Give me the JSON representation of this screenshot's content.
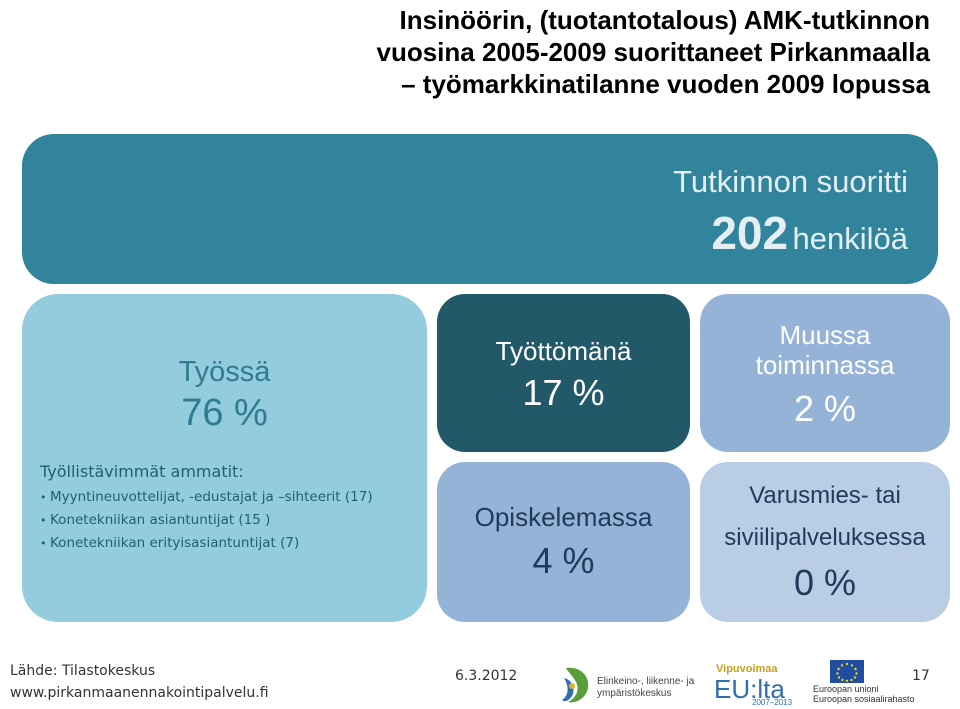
{
  "title": {
    "line1": "Insinöörin, (tuotantotalous) AMK-tutkinnon",
    "line2": "vuosina 2005-2009 suorittaneet Pirkanmaalla",
    "line3": "– työmarkkinatilanne vuoden 2009 lopussa"
  },
  "total": {
    "label": "Tutkinnon suoritti",
    "count": "202",
    "unit": "henkilöä"
  },
  "employed": {
    "label": "Työssä",
    "percent": "76 %",
    "occupations_title": "Työllistävimmät ammatit:",
    "occupations": [
      "Myyntineuvottelijat, -edustajat ja –sihteerit (17)",
      "Konetekniikan asiantuntijat  (15 )",
      "Konetekniikan erityisasiantuntijat  (7)"
    ]
  },
  "unemployed": {
    "label": "Työttömänä",
    "percent": "17 %"
  },
  "studying": {
    "label": "Opiskelemassa",
    "percent": "4 %"
  },
  "other": {
    "label": "Muussa toiminnassa",
    "percent": "2 %"
  },
  "military": {
    "label_line1": "Varusmies- tai",
    "label_line2": "siviilipalveluksessa",
    "percent": "0 %"
  },
  "footer": {
    "source": "Lähde: Tilastokeskus",
    "url": "www.pirkanmaanennakointipalvelu.fi",
    "date": "6.3.2012",
    "page": "17",
    "ely_line1": "Elinkeino-, liikenne- ja",
    "ely_line2": "ympäristökeskus",
    "vipuvoimaa": "Vipuvoimaa",
    "eu_alta": "EU:lta",
    "years": "2007–2013",
    "eu_line1": "Euroopan unioni",
    "eu_line2": "Euroopan sosiaalirahasto"
  },
  "colors": {
    "total_box": "#31849b",
    "employed_box": "#93cddd",
    "unemployed_box": "#215968",
    "studying_box": "#95b3d7",
    "other_box": "#95b3d7",
    "military_box": "#b9cde5"
  }
}
